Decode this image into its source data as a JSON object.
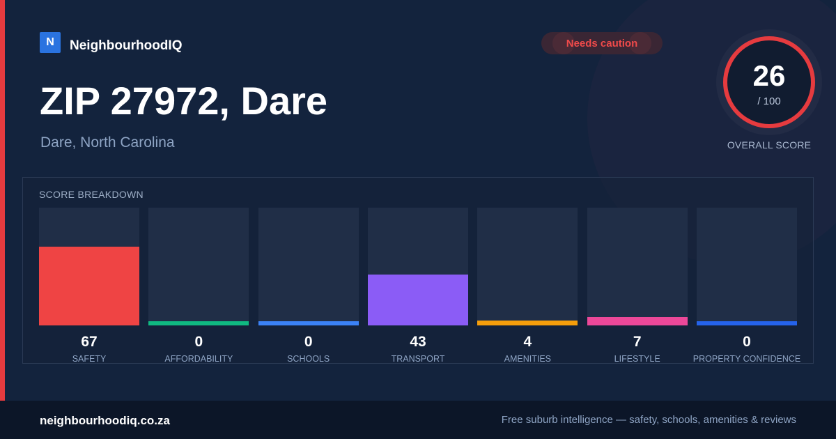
{
  "brand": {
    "logo_letter": "N",
    "name": "NeighbourhoodIQ"
  },
  "badge": {
    "text": "Needs caution",
    "color": "#ef4a4a"
  },
  "location": {
    "title": "ZIP 27972, Dare",
    "subtitle": "Dare, North Carolina"
  },
  "overall": {
    "score": "26",
    "denominator": "/ 100",
    "label": "OVERALL SCORE",
    "ring_color": "#e63b3f"
  },
  "breakdown": {
    "title": "SCORE BREAKDOWN",
    "items": [
      {
        "label": "SAFETY",
        "value": "67",
        "color": "#ef4444"
      },
      {
        "label": "AFFORDABILITY",
        "value": "0",
        "color": "#10b981"
      },
      {
        "label": "SCHOOLS",
        "value": "0",
        "color": "#3b82f6"
      },
      {
        "label": "TRANSPORT",
        "value": "43",
        "color": "#8b5cf6"
      },
      {
        "label": "AMENITIES",
        "value": "4",
        "color": "#f59e0b"
      },
      {
        "label": "LIFESTYLE",
        "value": "7",
        "color": "#ec4899"
      },
      {
        "label": "PROPERTY CONFIDENCE",
        "value": "0",
        "color": "#2563eb"
      }
    ]
  },
  "footer": {
    "site": "neighbourhoodiq.co.za",
    "tagline": "Free suburb intelligence — safety, schools, amenities & reviews"
  }
}
